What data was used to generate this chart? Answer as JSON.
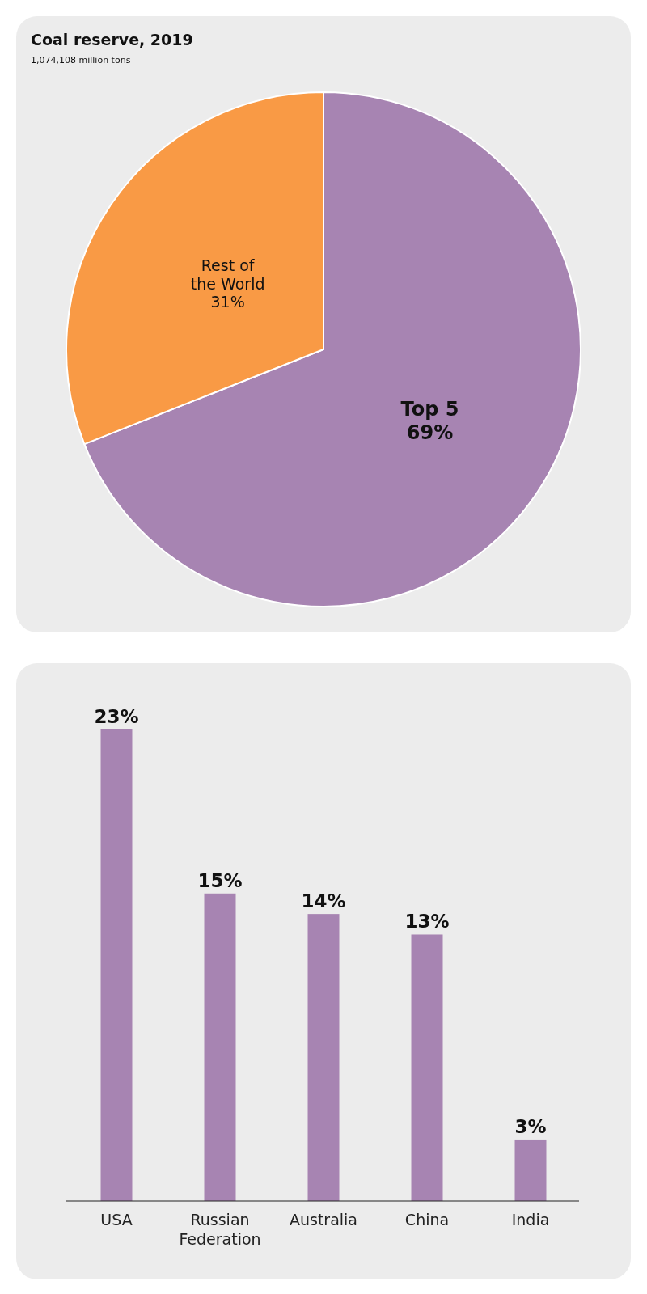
{
  "chart_data": [
    {
      "type": "pie",
      "title": "Coal reserve, 2019",
      "subtitle": "1,074,108 million tons",
      "categories": [
        "Top 5",
        "Rest of the World"
      ],
      "values": [
        69,
        31
      ],
      "value_labels": [
        "69%",
        "31%"
      ],
      "colors": [
        "#a784b2",
        "#f99a45"
      ]
    },
    {
      "type": "bar",
      "categories": [
        "USA",
        "Russian Federation",
        "Australia",
        "China",
        "India"
      ],
      "values": [
        23,
        15,
        14,
        13,
        3
      ],
      "value_labels": [
        "23%",
        "15%",
        "14%",
        "13%",
        "3%"
      ],
      "color": "#a784b2"
    }
  ]
}
